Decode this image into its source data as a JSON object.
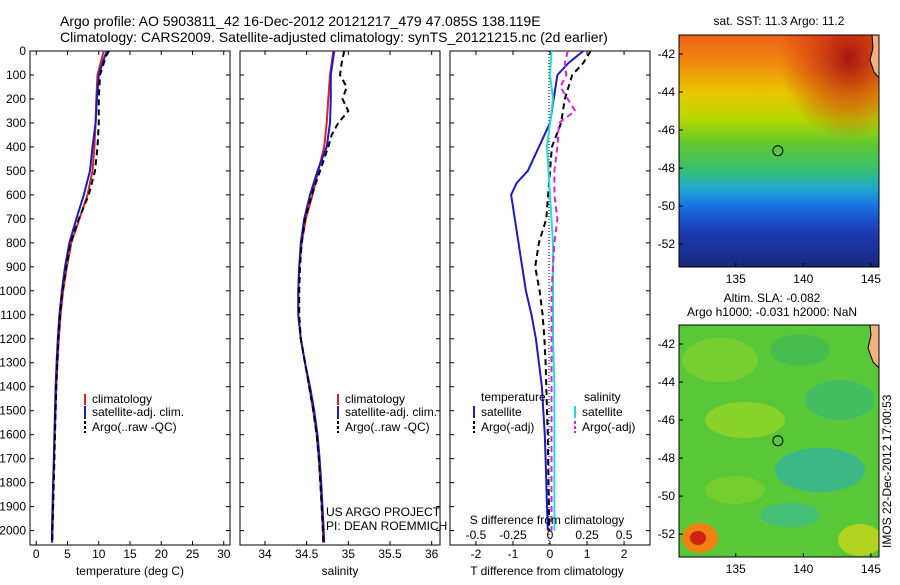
{
  "header": {
    "title_line1": "Argo profile: AO 5903811_42 16-Dec-2012 20121217_479 47.085S 138.119E",
    "title_line2": "Climatology: CARS2009. Satellite-adjusted climatology: synTS_20121215.nc (2d earlier)"
  },
  "colors": {
    "climatology": "#dd2222",
    "satellite": "#1a1acc",
    "argo": "#000000",
    "sat_salinity": "#22dddd",
    "argo_adj_salinity": "#dd22dd"
  },
  "chart_data": [
    {
      "type": "line",
      "xlabel": "temperature (deg C)",
      "xlim": [
        -1,
        31
      ],
      "xticks": [
        "0",
        "5",
        "10",
        "15",
        "20",
        "25",
        "30"
      ],
      "ylim": [
        2060,
        0
      ],
      "yticks": [
        "0",
        "100",
        "200",
        "300",
        "400",
        "500",
        "600",
        "700",
        "800",
        "900",
        "1000",
        "1100",
        "1200",
        "1300",
        "1400",
        "1500",
        "1600",
        "1700",
        "1800",
        "1900",
        "2000"
      ],
      "legend": [
        "climatology",
        "satellite-adj. clim.",
        "Argo(..raw -QC)"
      ],
      "legend_position": "lower-right",
      "series": [
        {
          "name": "climatology",
          "depth": [
            0,
            20,
            50,
            100,
            200,
            300,
            400,
            500,
            600,
            700,
            800,
            900,
            1000,
            1100,
            1200,
            1300,
            1400,
            1500,
            1600,
            1700,
            1800,
            1900,
            2000,
            2050
          ],
          "values": [
            10.8,
            10.6,
            10.3,
            9.8,
            9.6,
            9.5,
            9.3,
            9.0,
            8.2,
            6.9,
            5.6,
            4.9,
            4.3,
            3.9,
            3.6,
            3.4,
            3.2,
            3.1,
            2.95,
            2.85,
            2.75,
            2.7,
            2.6,
            2.55
          ]
        },
        {
          "name": "satellite-adj. clim.",
          "depth": [
            0,
            20,
            50,
            100,
            200,
            300,
            400,
            500,
            600,
            700,
            800,
            900,
            1000,
            1100,
            1200,
            1300,
            1400,
            1500,
            1600,
            1700,
            1800,
            1900,
            2000,
            2050
          ],
          "values": [
            11.3,
            11.0,
            10.6,
            10.0,
            9.7,
            9.5,
            9.0,
            8.6,
            7.6,
            6.4,
            5.3,
            4.6,
            4.1,
            3.7,
            3.45,
            3.25,
            3.1,
            3.0,
            2.9,
            2.8,
            2.7,
            2.6,
            2.5,
            2.5
          ]
        },
        {
          "name": "Argo(..raw -QC)",
          "depth": [
            0,
            20,
            50,
            100,
            200,
            300,
            400,
            500,
            600,
            700,
            800,
            900,
            1000,
            1100,
            1200,
            1300,
            1400,
            1500,
            1600,
            1700,
            1800,
            1900,
            2000,
            2050
          ],
          "values": [
            11.6,
            11.2,
            10.8,
            10.2,
            10.0,
            10.0,
            9.8,
            9.4,
            8.4,
            6.8,
            5.5,
            4.8,
            4.2,
            3.8,
            3.55,
            3.35,
            3.2,
            3.1,
            3.0,
            2.9,
            2.8,
            2.7,
            2.6,
            2.55
          ]
        }
      ]
    },
    {
      "type": "line",
      "xlabel": "salinity",
      "xlim": [
        33.7,
        36.1
      ],
      "xticks": [
        "34",
        "34.5",
        "35",
        "35.5",
        "36"
      ],
      "ylim": [
        2060,
        0
      ],
      "legend": [
        "climatology",
        "satellite-adj. clim.",
        "Argo(..raw -QC)"
      ],
      "legend_position": "lower-right",
      "annotations": [
        "US ARGO PROJECT",
        "PI: DEAN ROEMMICH"
      ],
      "series": [
        {
          "name": "climatology",
          "depth": [
            0,
            50,
            100,
            200,
            300,
            400,
            500,
            600,
            700,
            800,
            900,
            1000,
            1100,
            1200,
            1300,
            1400,
            1500,
            1600,
            1700,
            1800,
            1900,
            2000,
            2050
          ],
          "values": [
            34.82,
            34.8,
            34.78,
            34.76,
            34.74,
            34.71,
            34.64,
            34.57,
            34.49,
            34.44,
            34.41,
            34.4,
            34.4,
            34.43,
            34.48,
            34.53,
            34.58,
            34.62,
            34.645,
            34.665,
            34.68,
            34.695,
            34.7
          ]
        },
        {
          "name": "satellite-adj. clim.",
          "depth": [
            0,
            50,
            100,
            200,
            300,
            400,
            500,
            600,
            700,
            800,
            900,
            1000,
            1100,
            1200,
            1300,
            1400,
            1500,
            1600,
            1700,
            1800,
            1900,
            2000,
            2050
          ],
          "values": [
            34.83,
            34.81,
            34.79,
            34.79,
            34.78,
            34.74,
            34.63,
            34.54,
            34.47,
            34.43,
            34.41,
            34.4,
            34.4,
            34.43,
            34.48,
            34.54,
            34.59,
            34.63,
            34.655,
            34.675,
            34.69,
            34.705,
            34.71
          ]
        },
        {
          "name": "Argo(..raw -QC)",
          "depth": [
            0,
            50,
            100,
            150,
            200,
            250,
            300,
            350,
            400,
            500,
            600,
            700,
            800,
            900,
            1000,
            1100,
            1200,
            1300,
            1400,
            1500,
            1600,
            1700,
            1800,
            1900,
            2000,
            2050
          ],
          "values": [
            34.95,
            34.92,
            34.9,
            34.98,
            34.93,
            35.0,
            34.88,
            34.8,
            34.76,
            34.66,
            34.56,
            34.48,
            34.44,
            34.42,
            34.41,
            34.41,
            34.43,
            34.48,
            34.53,
            34.58,
            34.62,
            34.645,
            34.665,
            34.68,
            34.695,
            34.7
          ]
        }
      ]
    },
    {
      "type": "line",
      "xlabel": "T difference from climatology",
      "top_xlabel": "S difference from climatology",
      "xlim": [
        -2.7,
        2.7
      ],
      "xticks": [
        "-2",
        "-1",
        "0",
        "1",
        "2"
      ],
      "top_xticks": [
        "-0.5",
        "-0.25",
        "0",
        "0.25",
        "0.5"
      ],
      "ylim": [
        2060,
        0
      ],
      "legend": {
        "temperature_heading": "temperature",
        "salinity_heading": "salinity",
        "items": [
          "satellite",
          "Argo(-adj)",
          "satellite",
          "Argo(-adj)"
        ]
      },
      "legend_position": "lower-right",
      "series": [
        {
          "name": "satellite",
          "depth": [
            0,
            50,
            100,
            200,
            300,
            400,
            500,
            550,
            600,
            650,
            700,
            800,
            900,
            1000,
            1100,
            1200,
            1300,
            1400,
            1500,
            1600,
            1700,
            1800,
            1900,
            2000
          ],
          "values": [
            0.9,
            0.5,
            0.2,
            0.1,
            0.0,
            -0.3,
            -0.6,
            -0.9,
            -1.05,
            -1.0,
            -0.95,
            -0.85,
            -0.75,
            -0.65,
            -0.5,
            -0.38,
            -0.3,
            -0.22,
            -0.18,
            -0.14,
            -0.12,
            -0.1,
            -0.08,
            -0.06
          ]
        },
        {
          "name": "Argo(-adj)",
          "depth": [
            0,
            50,
            100,
            200,
            300,
            400,
            500,
            600,
            700,
            800,
            900,
            1000,
            1100,
            1200,
            1300,
            1400,
            1500,
            1600,
            1700,
            1800,
            1900,
            2000
          ],
          "values": [
            1.1,
            0.9,
            0.6,
            0.4,
            0.3,
            0.05,
            0.0,
            -0.05,
            -0.1,
            -0.3,
            -0.4,
            -0.28,
            -0.2,
            -0.15,
            -0.12,
            -0.1,
            -0.08,
            -0.06,
            -0.05,
            -0.04,
            -0.03,
            -0.02
          ]
        },
        {
          "name": "satellite",
          "depth": [
            0,
            100,
            200,
            300,
            400,
            500,
            600,
            700,
            800,
            900,
            1000,
            1200,
            1400,
            1600,
            1800,
            2000
          ],
          "values": [
            0.01,
            0.0,
            0.02,
            0.0,
            -0.02,
            -0.01,
            0.0,
            0.01,
            0.02,
            0.02,
            0.02,
            0.02,
            0.03,
            0.03,
            0.03,
            0.03
          ]
        },
        {
          "name": "Argo(-adj)",
          "depth": [
            0,
            50,
            100,
            150,
            200,
            250,
            300,
            400,
            500,
            600,
            700,
            800,
            900,
            1000,
            1200,
            1400,
            1600,
            1800,
            2000
          ],
          "values": [
            0.12,
            0.1,
            0.11,
            0.07,
            0.12,
            0.17,
            0.06,
            0.05,
            0.03,
            0.03,
            0.05,
            0.03,
            0.02,
            0.01,
            0.01,
            0.01,
            0.01,
            0.01,
            0.01
          ]
        }
      ]
    },
    {
      "type": "heatmap",
      "title": "sat. SST: 11.3  Argo: 11.2",
      "xticks": [
        "135",
        "140",
        "145"
      ],
      "yticks": [
        "-42",
        "-44",
        "-46",
        "-48",
        "-50",
        "-52"
      ],
      "xlim": [
        130.8,
        145.6
      ],
      "ylim": [
        -53.2,
        -41.0
      ],
      "marker": {
        "lon": 138.119,
        "lat": -47.085
      }
    },
    {
      "type": "heatmap",
      "title": "Altim. SLA: -0.082",
      "subtitle": "Argo h1000: -0.031  h2000: NaN",
      "xticks": [
        "135",
        "140",
        "145"
      ],
      "yticks": [
        "-42",
        "-44",
        "-46",
        "-48",
        "-50",
        "-52"
      ],
      "xlim": [
        130.8,
        145.6
      ],
      "ylim": [
        -53.2,
        -41.0
      ],
      "marker": {
        "lon": 138.119,
        "lat": -47.085
      }
    }
  ],
  "footer": {
    "stamp": "IMOS 22-Dec-2012 17:00:53"
  }
}
